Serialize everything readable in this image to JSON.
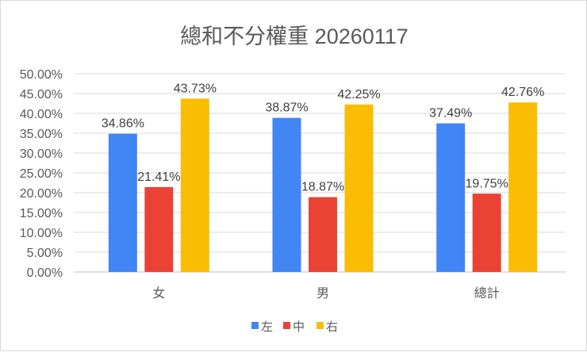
{
  "chart_data": {
    "type": "bar",
    "title": "總和不分權重 20260117",
    "categories": [
      "女",
      "男",
      "總計"
    ],
    "series": [
      {
        "name": "左",
        "color": "#4285f4",
        "values": [
          34.86,
          38.87,
          37.49
        ],
        "labels": [
          "34.86%",
          "38.87%",
          "37.49%"
        ]
      },
      {
        "name": "中",
        "color": "#ea4335",
        "values": [
          21.41,
          18.87,
          19.75
        ],
        "labels": [
          "21.41%",
          "18.87%",
          "19.75%"
        ]
      },
      {
        "name": "右",
        "color": "#fbbc04",
        "values": [
          43.73,
          42.25,
          42.76
        ],
        "labels": [
          "43.73%",
          "42.25%",
          "42.76%"
        ]
      }
    ],
    "ylim": [
      0,
      50
    ],
    "yticks": [
      "0.00%",
      "5.00%",
      "10.00%",
      "15.00%",
      "20.00%",
      "25.00%",
      "30.00%",
      "35.00%",
      "40.00%",
      "45.00%",
      "50.00%"
    ],
    "grid": true,
    "legend": "bottom",
    "xlabel": "",
    "ylabel": ""
  }
}
